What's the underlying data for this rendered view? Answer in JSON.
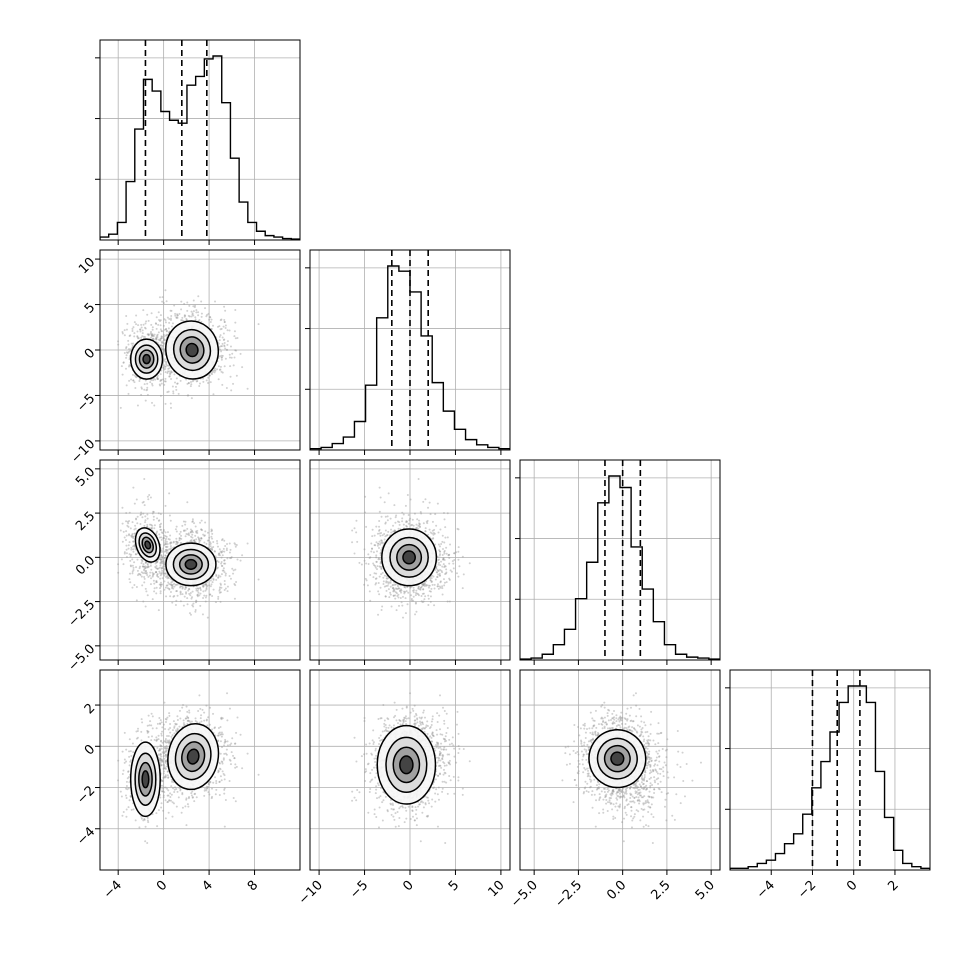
{
  "chart_data": {
    "type": "corner",
    "grid": true,
    "style": {
      "hist_color": "#000000",
      "contour_color": "#000000",
      "quantile_color": "#000000",
      "point_color": "#9a9a9a",
      "grid_color": "#b0b0b0"
    },
    "params": [
      {
        "range": [
          -5.6,
          12.0
        ],
        "ticks": [
          -4,
          0,
          4,
          8
        ],
        "tick_labels": [
          "−4",
          "0",
          "4",
          "8"
        ],
        "quantiles": [
          -1.6,
          1.6,
          3.8
        ],
        "hist": [
          1,
          2,
          6,
          20,
          38,
          55,
          51,
          44,
          41,
          40,
          53,
          56,
          62,
          63,
          47,
          28,
          13,
          6,
          3,
          1.5,
          1,
          0.5,
          0.3
        ]
      },
      {
        "range": [
          -11.0,
          11.0
        ],
        "ticks": [
          -10,
          -5,
          0,
          5,
          10
        ],
        "tick_labels": [
          "−10",
          "−5",
          "0",
          "5",
          "10"
        ],
        "quantiles": [
          -2.0,
          0.0,
          2.0
        ],
        "hist": [
          0.5,
          1,
          2.5,
          5,
          11,
          25,
          51,
          71,
          69,
          61,
          44,
          26,
          15,
          8,
          4,
          2,
          1,
          0.5
        ]
      },
      {
        "range": [
          -5.8,
          5.5
        ],
        "ticks": [
          -5.0,
          -2.5,
          0.0,
          2.5,
          5.0
        ],
        "tick_labels": [
          "−5.0",
          "−2.5",
          "0.0",
          "2.5",
          "5.0"
        ],
        "quantiles": [
          -1.0,
          0.0,
          1.0
        ],
        "hist": [
          0.5,
          1,
          3,
          8,
          16,
          32,
          51,
          82,
          96,
          90,
          59,
          37,
          20,
          8,
          3,
          1.5,
          1,
          0.5
        ]
      },
      {
        "range": [
          -6.0,
          3.7
        ],
        "ticks": [
          -4,
          -2,
          0,
          2
        ],
        "tick_labels": [
          "−4",
          "−2",
          "0",
          "2"
        ],
        "quantiles": [
          -2.0,
          -0.8,
          0.3
        ],
        "hist": [
          0.5,
          0.5,
          1,
          2,
          3,
          5,
          8,
          11,
          17,
          25,
          33,
          42,
          51,
          56,
          56,
          51,
          30,
          16,
          6,
          2,
          1,
          0.5
        ]
      }
    ]
  }
}
